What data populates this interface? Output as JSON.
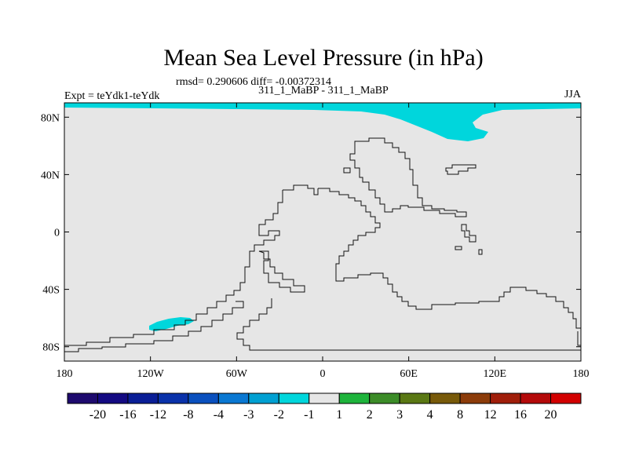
{
  "chart_data": {
    "type": "heatmap",
    "title": "Mean Sea Level Pressure (in hPa)",
    "stats_line": "rmsd= 0.290606 diff= -0.00372314",
    "experiment_label": "Expt = teYdk1-teYdk",
    "comparison_label": "311_1_MaBP - 311_1_MaBP",
    "season": "JJA",
    "x_ticks": [
      "180",
      "120W",
      "60W",
      "0",
      "60E",
      "120E",
      "180"
    ],
    "y_ticks": [
      "80N",
      "40N",
      "0",
      "40S",
      "80S"
    ],
    "lon_range": [
      -180,
      180
    ],
    "lat_range": [
      -90,
      90
    ],
    "background_color": "#e6e6e6",
    "anomaly_regions": [
      {
        "name": "arctic band",
        "level": "-2 to -1",
        "color": "#00d6dc"
      },
      {
        "name": "southern patch",
        "level": "-2 to -1",
        "color": "#00d6dc"
      }
    ],
    "colorbar": {
      "labels": [
        "-20",
        "-16",
        "-12",
        "-8",
        "-4",
        "-3",
        "-2",
        "-1",
        "1",
        "2",
        "3",
        "4",
        "8",
        "12",
        "16",
        "20"
      ],
      "colors": [
        "#1e0a6e",
        "#140a82",
        "#0a1e96",
        "#0a32aa",
        "#0a50be",
        "#0a78d2",
        "#00a0d2",
        "#00d6dc",
        "#e6e6e6",
        "#1eb43c",
        "#3c8c28",
        "#5a7814",
        "#785a0a",
        "#8c3c0a",
        "#a01e0a",
        "#b40a0a",
        "#d20000"
      ]
    }
  }
}
